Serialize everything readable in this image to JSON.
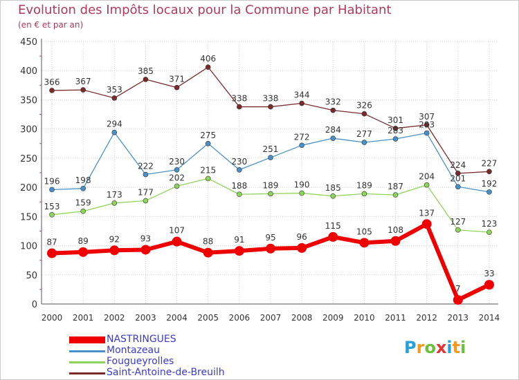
{
  "title": "Evolution des Impôts locaux pour la Commune par Habitant",
  "subtitle": "(en € et par an)",
  "logo": {
    "letters": [
      "P",
      "r",
      "o",
      "x",
      "i",
      "t",
      "i"
    ],
    "colors": [
      "#2a9fd6",
      "#f59a1e",
      "#6cbf3c",
      "#e8322f",
      "#2a9fd6",
      "#f59a1e",
      "#6cbf3c"
    ]
  },
  "chart_data": {
    "type": "line",
    "x": [
      "2000",
      "2001",
      "2002",
      "2003",
      "2004",
      "2005",
      "2006",
      "2007",
      "2008",
      "2009",
      "2010",
      "2011",
      "2012",
      "2013",
      "2014"
    ],
    "ylim": [
      0,
      450
    ],
    "yticks": [
      0,
      50,
      100,
      150,
      200,
      250,
      300,
      350,
      400,
      450
    ],
    "grid": true,
    "legend_position": "bottom-left",
    "series": [
      {
        "name": "NASTRINGUES",
        "color": "#ee0000",
        "values": [
          87,
          89,
          92,
          93,
          107,
          88,
          91,
          95,
          96,
          115,
          105,
          108,
          137,
          7,
          33
        ]
      },
      {
        "name": "Montazeau",
        "color": "#4a90c8",
        "values": [
          196,
          198,
          294,
          222,
          230,
          275,
          230,
          251,
          272,
          284,
          277,
          283,
          293,
          201,
          192
        ]
      },
      {
        "name": "Fougueyrolles",
        "color": "#8fd45a",
        "values": [
          153,
          159,
          173,
          177,
          202,
          215,
          188,
          189,
          190,
          185,
          189,
          187,
          204,
          127,
          123
        ]
      },
      {
        "name": "Saint-Antoine-de-Breuilh",
        "color": "#7a2a2a",
        "values": [
          366,
          367,
          353,
          385,
          371,
          406,
          338,
          338,
          344,
          332,
          326,
          301,
          307,
          224,
          227
        ]
      }
    ]
  }
}
